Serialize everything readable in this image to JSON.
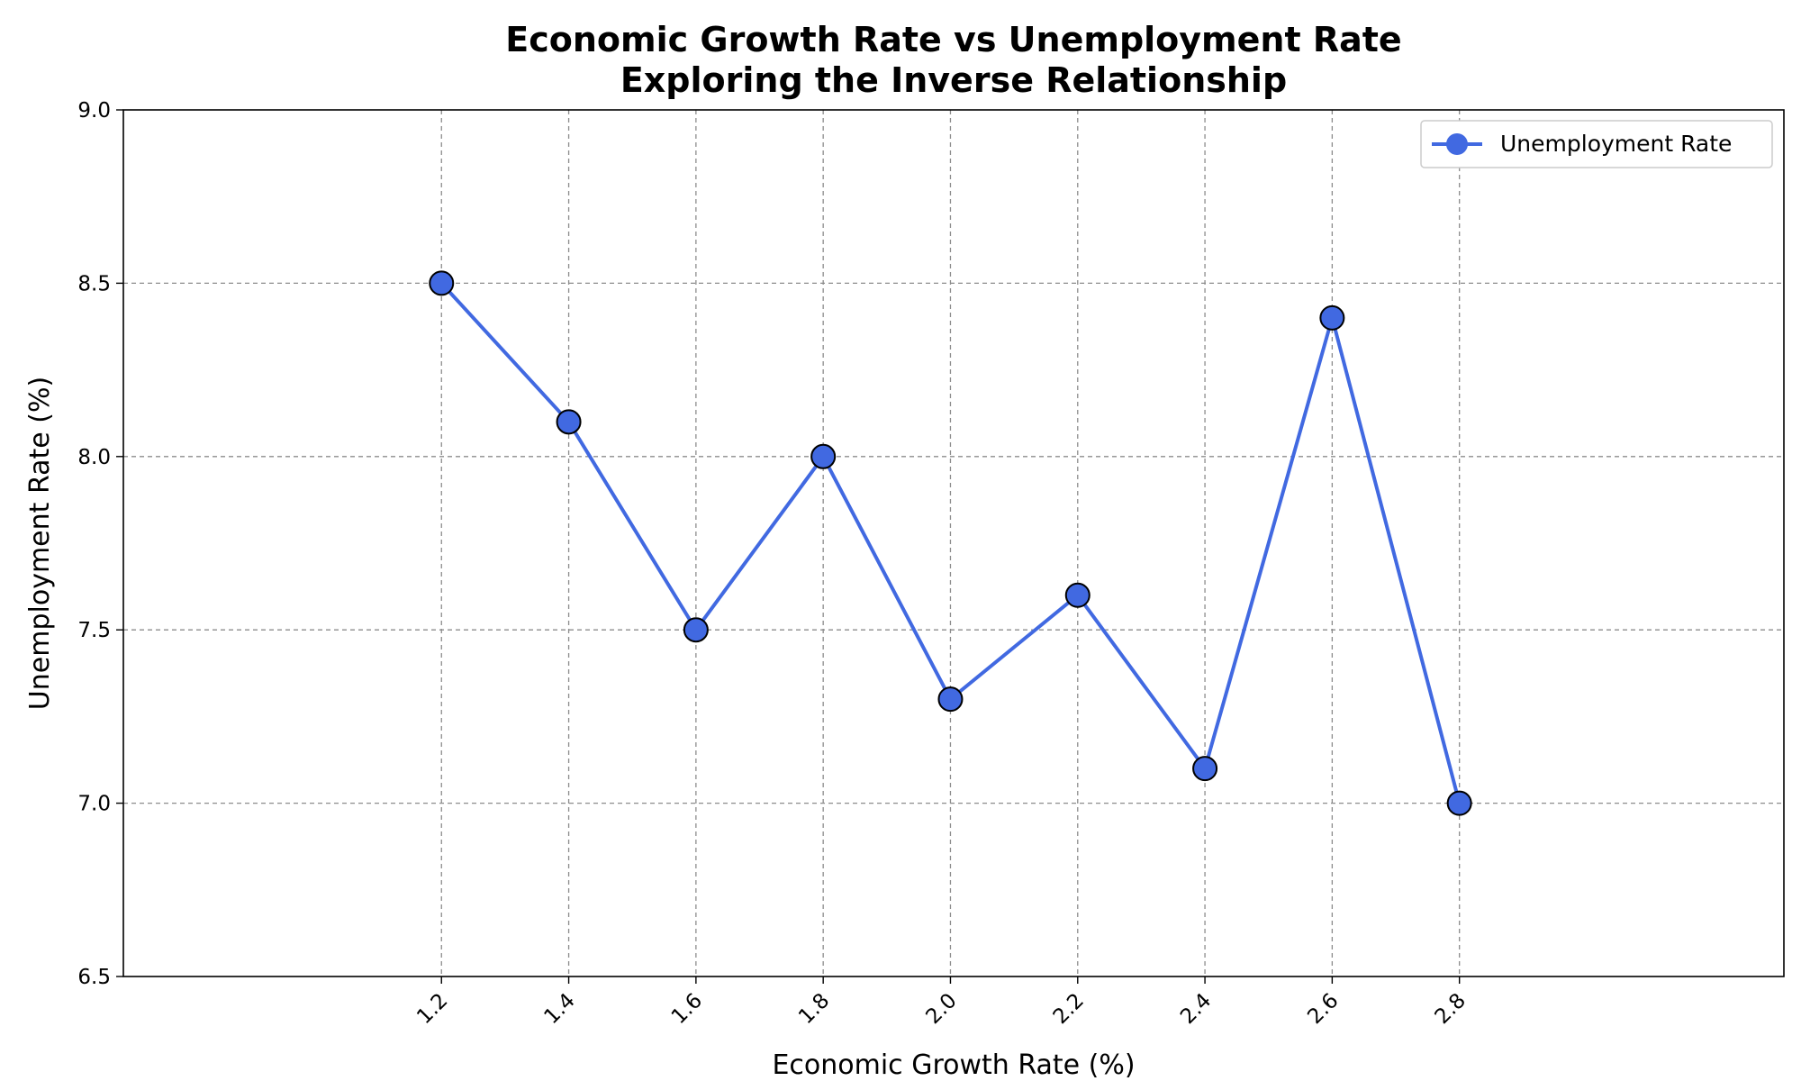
{
  "chart_data": {
    "type": "line",
    "title": "Economic Growth Rate vs Unemployment Rate",
    "subtitle": "Exploring the Inverse Relationship",
    "xlabel": "Economic Growth Rate (%)",
    "ylabel": "Unemployment Rate (%)",
    "x": [
      1.2,
      1.4,
      1.6,
      1.8,
      2.0,
      2.2,
      2.4,
      2.6,
      2.8
    ],
    "x_tick_labels": [
      "1.2",
      "1.4",
      "1.6",
      "1.8",
      "2.0",
      "2.2",
      "2.4",
      "2.6",
      "2.8"
    ],
    "y_ticks": [
      6.5,
      7.0,
      7.5,
      8.0,
      8.5,
      9.0
    ],
    "y_tick_labels": [
      "6.5",
      "7.0",
      "7.5",
      "8.0",
      "8.5",
      "9.0"
    ],
    "xlim": [
      0.7,
      3.31
    ],
    "ylim": [
      6.5,
      9.0
    ],
    "series": [
      {
        "name": "Unemployment Rate",
        "values": [
          8.5,
          8.1,
          7.5,
          8.0,
          7.3,
          7.6,
          7.1,
          8.4,
          7.0
        ],
        "color": "#4169E1",
        "marker_edge_color": "#000000"
      }
    ],
    "grid": true,
    "grid_style": "dashed",
    "legend_position": "top-right"
  }
}
